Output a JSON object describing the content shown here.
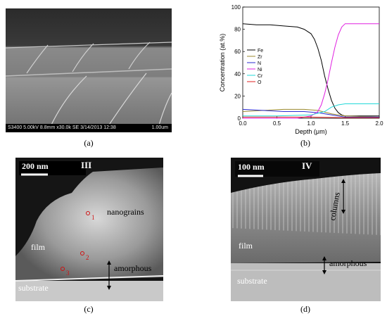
{
  "panel_a": {
    "caption": "(a)",
    "info_bar": "S3400 5.00kV 8.8mm x30.0k SE  3/14/2013 12:38",
    "scale_label": "1.00um"
  },
  "panel_b": {
    "caption": "(b)"
  },
  "panel_c": {
    "caption": "(c)",
    "scale_label": "200 nm",
    "roman": "III",
    "labels": {
      "nanograins": "nanograins",
      "film": "film",
      "amorphous": "amorphous",
      "substrate": "substrate"
    },
    "points": [
      "1",
      "2",
      "3"
    ]
  },
  "panel_d": {
    "caption": "(d)",
    "scale_label": "100 nm",
    "roman": "IV",
    "labels": {
      "columns": "columns",
      "film": "film",
      "amorphous": "amorphous",
      "substrate": "substrate"
    }
  },
  "chart_data": {
    "type": "line",
    "xlabel": "Depth (μm)",
    "ylabel": "Concentration (at.%)",
    "xlim": [
      0,
      2.0
    ],
    "ylim": [
      0,
      100
    ],
    "xticks": [
      "0.0",
      "0.5",
      "1.0",
      "1.5",
      "2.0"
    ],
    "yticks": [
      "0",
      "20",
      "40",
      "60",
      "80",
      "100"
    ],
    "legend_position": "middle-left",
    "series": [
      {
        "name": "Fe",
        "color": "#000000",
        "x": [
          0,
          0.2,
          0.4,
          0.6,
          0.8,
          0.9,
          1.0,
          1.05,
          1.1,
          1.15,
          1.2,
          1.25,
          1.3,
          1.35,
          1.4,
          1.45,
          1.5,
          1.6,
          1.8,
          2.0
        ],
        "y": [
          85,
          84,
          84,
          83,
          82,
          80,
          76,
          71,
          63,
          52,
          38,
          26,
          16,
          9,
          5,
          3,
          2,
          2,
          2,
          2
        ]
      },
      {
        "name": "Zr",
        "color": "#9b8a2e",
        "x": [
          0,
          0.3,
          0.6,
          0.9,
          1.1,
          1.3,
          1.5,
          2.0
        ],
        "y": [
          6,
          7,
          8,
          8,
          7,
          4,
          2,
          1
        ]
      },
      {
        "name": "N",
        "color": "#2b2bd0",
        "x": [
          0,
          0.3,
          0.6,
          0.9,
          1.1,
          1.3,
          1.5,
          2.0
        ],
        "y": [
          8,
          7,
          6,
          6,
          5,
          3,
          1,
          1
        ]
      },
      {
        "name": "Ni",
        "color": "#e020e0",
        "x": [
          0,
          0.8,
          1.0,
          1.1,
          1.15,
          1.2,
          1.25,
          1.3,
          1.35,
          1.4,
          1.45,
          1.5,
          1.55,
          1.6,
          2.0
        ],
        "y": [
          0,
          0,
          2,
          6,
          12,
          22,
          35,
          50,
          64,
          75,
          82,
          85,
          85,
          85,
          85
        ]
      },
      {
        "name": "Cr",
        "color": "#22d8d8",
        "x": [
          0,
          0.5,
          1.0,
          1.2,
          1.3,
          1.4,
          1.5,
          1.6,
          2.0
        ],
        "y": [
          2,
          2,
          3,
          6,
          10,
          12,
          13,
          13,
          13
        ]
      },
      {
        "name": "O",
        "color": "#e02020",
        "x": [
          0,
          0.5,
          1.0,
          1.5,
          2.0
        ],
        "y": [
          1,
          1,
          1,
          0.5,
          0.5
        ]
      }
    ]
  }
}
